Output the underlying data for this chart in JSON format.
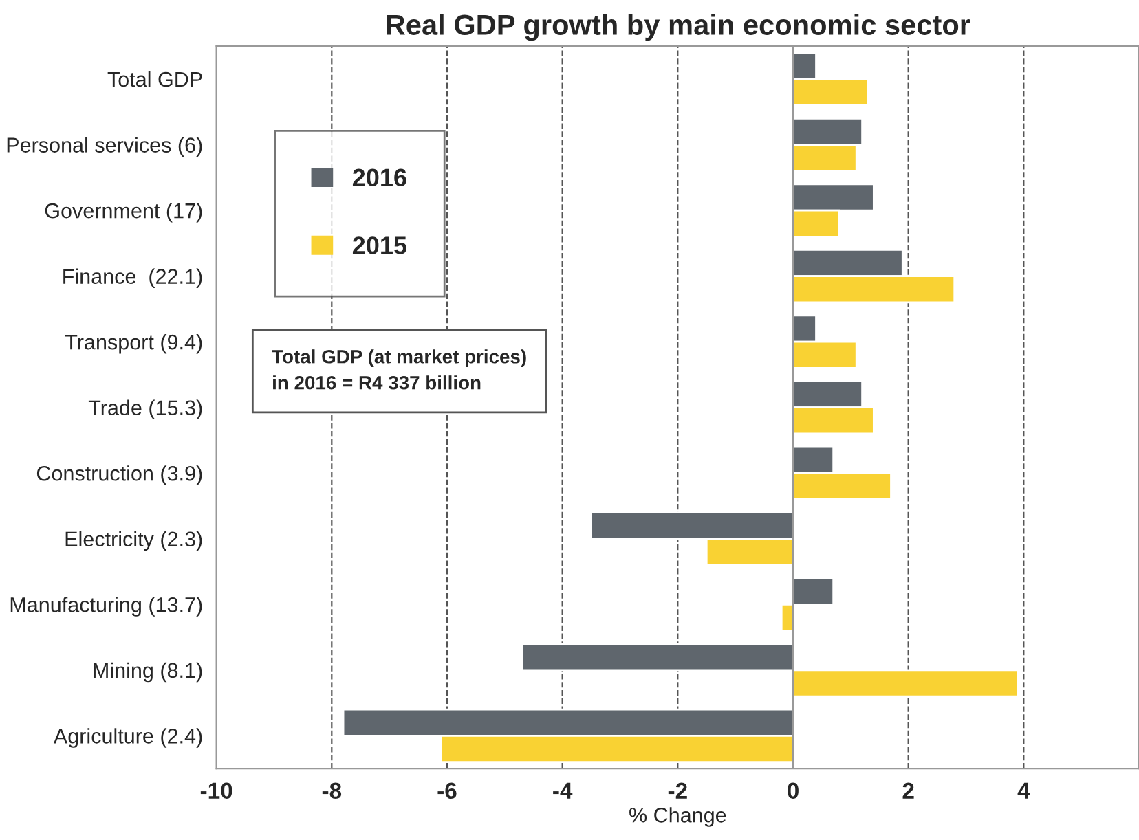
{
  "chart_data": {
    "type": "bar",
    "orientation": "horizontal",
    "title": "Real GDP growth by main economic sector",
    "xlabel": "% Change",
    "categories": [
      "Total GDP",
      "Personal services (6)",
      "Government (17)",
      "Finance  (22.1)",
      "Transport (9.4)",
      "Trade (15.3)",
      "Construction (3.9)",
      "Electricity (2.3)",
      "Manufacturing (13.7)",
      "Mining (8.1)",
      "Agriculture (2.4)"
    ],
    "series": [
      {
        "name": "2016",
        "color": "#5f666d",
        "values": [
          0.4,
          1.2,
          1.4,
          1.9,
          0.4,
          1.2,
          0.7,
          -3.5,
          0.7,
          -4.7,
          -7.8
        ]
      },
      {
        "name": "2015",
        "color": "#f9d233",
        "values": [
          1.3,
          1.1,
          0.8,
          2.8,
          1.1,
          1.4,
          1.7,
          -1.5,
          -0.2,
          3.9,
          -6.1
        ]
      }
    ],
    "xlim": [
      -10,
      6
    ],
    "xticks": [
      -10,
      -8,
      -6,
      -4,
      -2,
      0,
      2,
      4
    ],
    "grid": "x",
    "legend": "top left",
    "annotations": [
      "Total GDP (at market prices)\nin 2016 = R4 337 billion"
    ]
  }
}
